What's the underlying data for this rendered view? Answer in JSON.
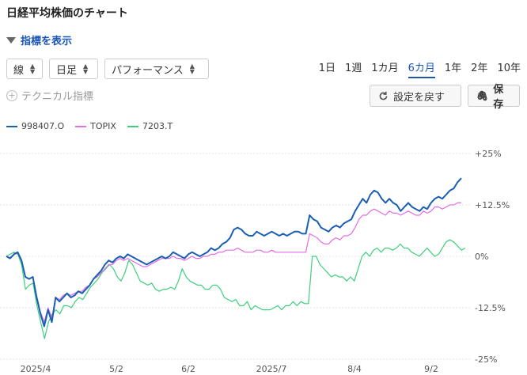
{
  "title": "日経平均株価のチャート",
  "indicator_toggle": "指標を表示",
  "selects": {
    "chart_type": "線",
    "interval": "日足",
    "mode": "パフォーマンス"
  },
  "periods": [
    {
      "label": "1日",
      "active": false
    },
    {
      "label": "1週",
      "active": false
    },
    {
      "label": "1カ月",
      "active": false
    },
    {
      "label": "6カ月",
      "active": true
    },
    {
      "label": "1年",
      "active": false
    },
    {
      "label": "2年",
      "active": false
    },
    {
      "label": "10年",
      "active": false
    }
  ],
  "technical_link": "テクニカル指標",
  "buttons": {
    "reset": "設定を戻す",
    "save": "保存"
  },
  "colors": {
    "accent": "#1a56b0",
    "series_nikkei": "#1a5fb4",
    "series_topix": "#e36de3",
    "series_7203": "#3ccf7c"
  },
  "chart_data": {
    "type": "line",
    "x_tick_labels": [
      "2025/4",
      "5/2",
      "6/2",
      "2025/7",
      "8/4",
      "9/2"
    ],
    "y_tick_labels": [
      "+25%",
      "+12.5%",
      "0%",
      "-12.5%",
      "-25%"
    ],
    "ylim": [
      -25,
      25
    ],
    "grid": true,
    "legend_position": "top-left",
    "series": [
      {
        "name": "998407.O",
        "color": "#1a5fb4",
        "values": [
          0,
          -0.5,
          0.5,
          1,
          -1,
          -5,
          -5.5,
          -5,
          -10,
          -14,
          -17,
          -13,
          -16,
          -10,
          -11,
          -10,
          -9,
          -10,
          -9.5,
          -8.5,
          -9,
          -8,
          -7,
          -5.5,
          -4.5,
          -3.5,
          -2,
          -1,
          -1.5,
          -0.5,
          0,
          -0.5,
          0.5,
          0,
          -0.5,
          -1,
          -1.5,
          -2,
          -1.5,
          -1,
          -0.5,
          0,
          -0.5,
          0,
          1,
          0.5,
          0,
          -0.5,
          0.5,
          1,
          0.5,
          0,
          0.5,
          1,
          2,
          1.5,
          2,
          3,
          3.5,
          4.5,
          6.5,
          7,
          6.5,
          5.5,
          5,
          5,
          6,
          5.5,
          5,
          5.5,
          6,
          5.5,
          5,
          5.5,
          5,
          5.5,
          6,
          6,
          5.5,
          5.5,
          10,
          9,
          8.5,
          7,
          6.5,
          6,
          7,
          7.5,
          7,
          8,
          8.5,
          9,
          11,
          12.5,
          14,
          13,
          15,
          16,
          15.5,
          14,
          13,
          14,
          13,
          12.5,
          11,
          12,
          13,
          12,
          11.5,
          11,
          12,
          11.5,
          13,
          14,
          14.5,
          14,
          15,
          16,
          16.5,
          18,
          19
        ]
      },
      {
        "name": "TOPIX",
        "color": "#e36de3",
        "values": [
          0,
          -0.3,
          0.4,
          0.8,
          -1,
          -5,
          -5.5,
          -5,
          -9.5,
          -13.5,
          -16,
          -12.5,
          -15,
          -10,
          -10.5,
          -9.5,
          -9,
          -9.5,
          -9,
          -8.5,
          -8.5,
          -7.5,
          -7,
          -5.5,
          -5,
          -4,
          -3,
          -2,
          -2,
          -1,
          -0.5,
          -1,
          -0.5,
          -1,
          -1.5,
          -2,
          -2.5,
          -2.5,
          -2,
          -1.5,
          -1,
          -0.5,
          -0.5,
          -0.5,
          0,
          -0.5,
          -0.5,
          -1,
          -0.5,
          0,
          -0.5,
          -0.5,
          0,
          0,
          0.5,
          0.5,
          1,
          1,
          1.5,
          1.5,
          1.5,
          2,
          1.5,
          1,
          1,
          1,
          1.5,
          1.5,
          1,
          1,
          1.5,
          1,
          1,
          1,
          1,
          1,
          1,
          1,
          1,
          1,
          5.5,
          5,
          4.5,
          3.5,
          3,
          3,
          4,
          4.5,
          4,
          5,
          5,
          5.5,
          7,
          9,
          10,
          10,
          11,
          11.5,
          11,
          10.5,
          10,
          11,
          10.5,
          10.5,
          10,
          10.5,
          11,
          10.5,
          10,
          10,
          11,
          10.5,
          11,
          12,
          12,
          11.5,
          12,
          12.5,
          12.5,
          13,
          13
        ]
      },
      {
        "name": "7203.T",
        "color": "#3ccf7c",
        "values": [
          0,
          0.5,
          1,
          0.5,
          -2,
          -8,
          -7,
          -6.5,
          -12,
          -16,
          -20,
          -16,
          -14,
          -13,
          -14,
          -12,
          -12,
          -12.5,
          -11,
          -10,
          -10.5,
          -9,
          -7.5,
          -6.5,
          -5.5,
          -4,
          -3,
          -2,
          -3,
          -5,
          -6,
          -4,
          -1,
          -2,
          -4,
          -6,
          -6.5,
          -7,
          -6.5,
          -8,
          -8.5,
          -8,
          -8,
          -7.5,
          -8,
          -6,
          -3,
          -5,
          -6,
          -6.5,
          -7,
          -7,
          -8,
          -8,
          -7,
          -7,
          -8,
          -10,
          -10.5,
          -11,
          -10.5,
          -12,
          -12,
          -11,
          -13,
          -12,
          -12.5,
          -13,
          -13,
          -13,
          -12.5,
          -12,
          -13,
          -12,
          -12,
          -11,
          -12,
          -11,
          -11.5,
          -11.5,
          0,
          0,
          -2,
          -3,
          -4,
          -5,
          -4.5,
          -5,
          -5,
          -6,
          -5,
          -6,
          -3,
          0,
          1,
          0,
          1.5,
          2,
          1,
          2,
          2,
          1.5,
          2,
          3,
          2,
          2,
          1,
          0.5,
          0,
          1,
          2,
          1,
          0,
          0.5,
          2,
          3.5,
          4,
          3.5,
          2.5,
          1.5,
          2
        ]
      }
    ]
  }
}
